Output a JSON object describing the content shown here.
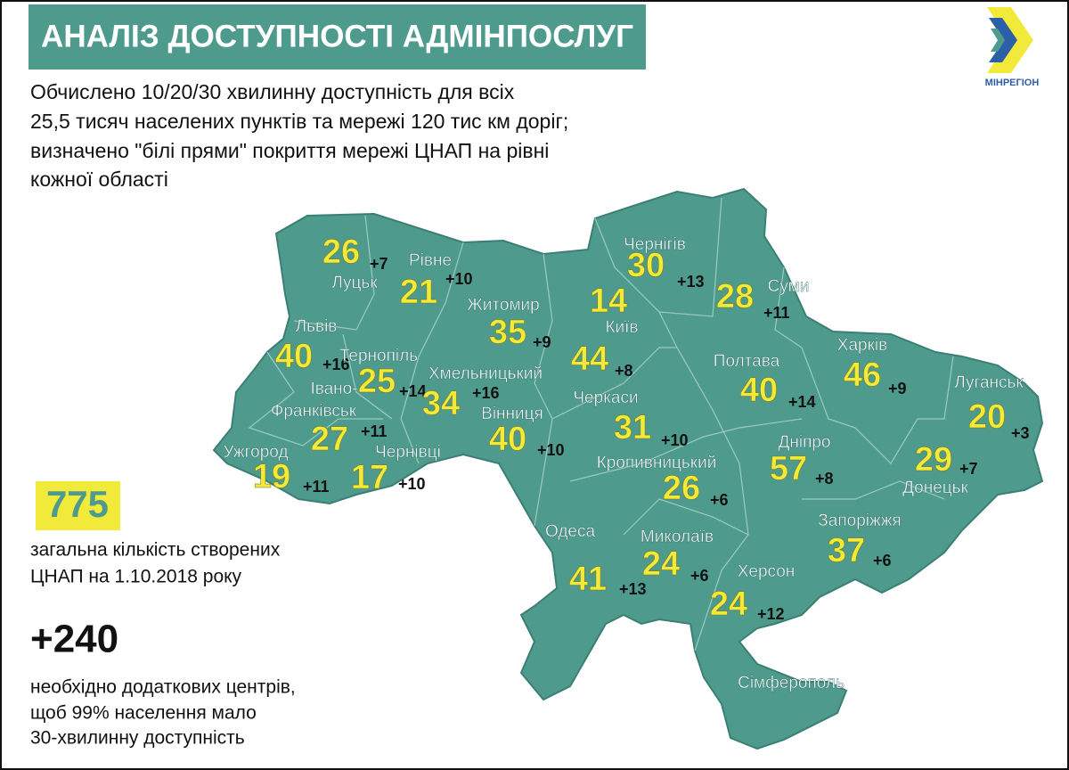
{
  "header": {
    "title": "АНАЛІЗ ДОСТУПНОСТІ АДМІНПОСЛУГ"
  },
  "logo": {
    "label": "МІНРЕГІОН"
  },
  "intro": {
    "lines": [
      "Обчислено 10/20/30 хвилинну доступність для всіх",
      "25,5 тисяч населених пунктів та мережі 120 тис км доріг;",
      "визначено \"білі прями\" покриття мережі ЦНАП на рівні",
      "кожної області"
    ]
  },
  "stats": [
    {
      "value": "775",
      "lines": [
        "загальна кількість створених",
        "ЦНАП на 1.10.2018 року"
      ]
    },
    {
      "value": "+240",
      "lines": [
        "необхідно додаткових центрів,",
        "щоб 99% населення мало",
        "30-хвилинну доступність"
      ]
    }
  ],
  "kyiv_city": {
    "count": "14"
  },
  "regions": [
    {
      "name": "Луцьк",
      "count": "26",
      "extra": "+7"
    },
    {
      "name": "Рівне",
      "count": "21",
      "extra": "+10"
    },
    {
      "name": "Житомир",
      "count": "35",
      "extra": "+9"
    },
    {
      "name": "Київ",
      "count": "44",
      "extra": "+8"
    },
    {
      "name": "Чернігів",
      "count": "30",
      "extra": "+13"
    },
    {
      "name": "Суми",
      "count": "28",
      "extra": "+11"
    },
    {
      "name": "Львів",
      "count": "40",
      "extra": "+16"
    },
    {
      "name": "Тернопіль",
      "count": "25",
      "extra": "+14"
    },
    {
      "name": "Хмельницький",
      "count": "34",
      "extra": "+16"
    },
    {
      "name": [
        "Івано-",
        "Франківськ"
      ],
      "count": "27",
      "extra": "+11"
    },
    {
      "name": "Черкаси",
      "count": "31",
      "extra": "+10"
    },
    {
      "name": "Полтава",
      "count": "40",
      "extra": "+14"
    },
    {
      "name": "Харків",
      "count": "46",
      "extra": "+9"
    },
    {
      "name": "Луганськ",
      "count": "20",
      "extra": "+3"
    },
    {
      "name": "Вінниця",
      "count": "40",
      "extra": "+10"
    },
    {
      "name": "Ужгород",
      "count": "19",
      "extra": "+11"
    },
    {
      "name": "Чернівці",
      "count": "17",
      "extra": "+10"
    },
    {
      "name": "Кропивницький",
      "count": "26",
      "extra": "+6"
    },
    {
      "name": "Дніпро",
      "count": "57",
      "extra": "+8"
    },
    {
      "name": "Донецьк",
      "count": "29",
      "extra": "+7"
    },
    {
      "name": "Запоріжжя",
      "count": "37",
      "extra": "+6"
    },
    {
      "name": "Одеса",
      "count": "41",
      "extra": "+13"
    },
    {
      "name": "Миколаїв",
      "count": "24",
      "extra": "+6"
    },
    {
      "name": "Херсон",
      "count": "24",
      "extra": "+12"
    }
  ],
  "crimea": {
    "name": "Сімферополь"
  }
}
